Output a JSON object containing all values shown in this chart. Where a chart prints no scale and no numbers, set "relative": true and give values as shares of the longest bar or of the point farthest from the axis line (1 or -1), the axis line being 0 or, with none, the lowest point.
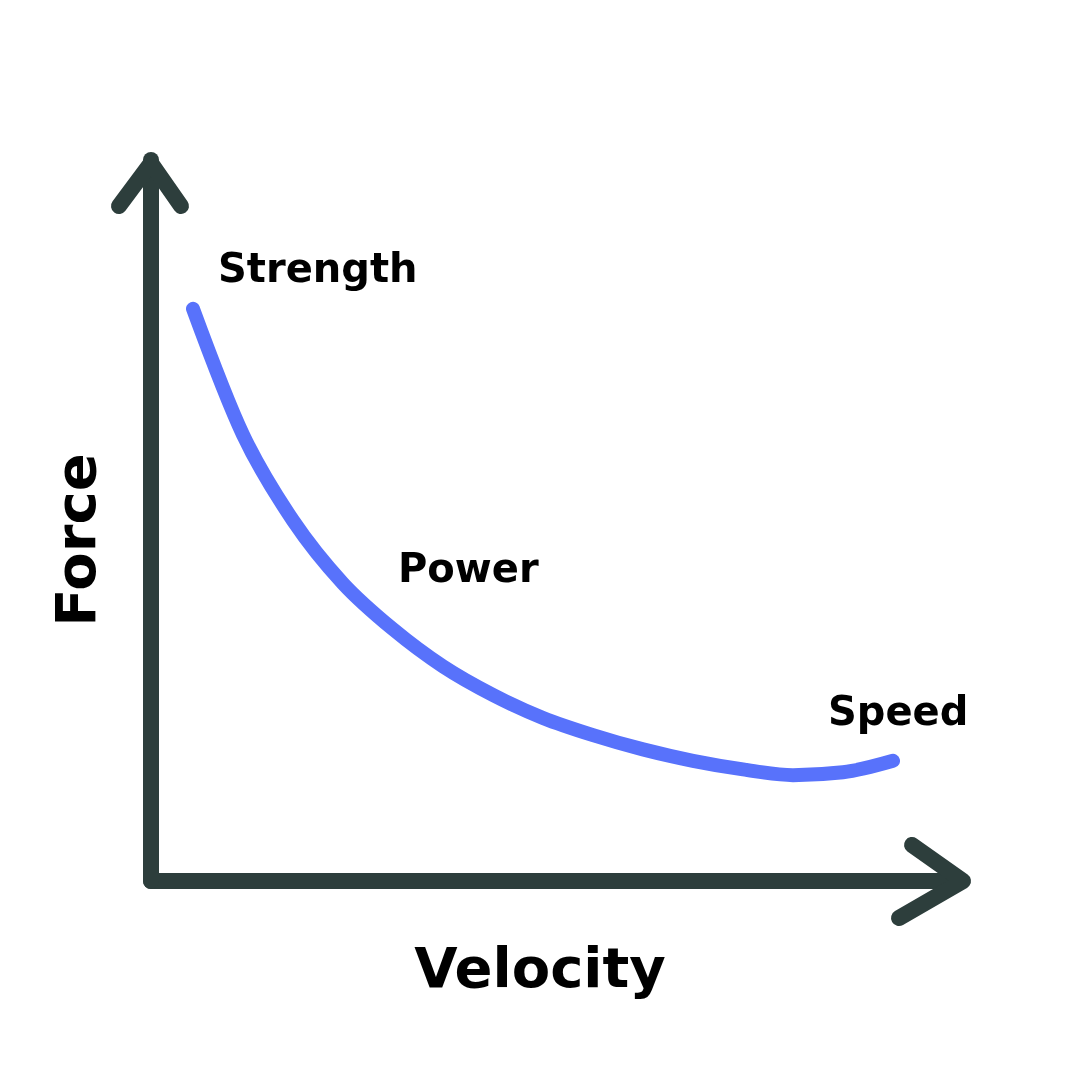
{
  "chart_data": {
    "type": "line",
    "relative": true,
    "xlabel": "Velocity",
    "ylabel": "Force",
    "annotations": [
      "Strength",
      "Power",
      "Speed"
    ],
    "categories": [
      null,
      null,
      null,
      null,
      null,
      null,
      null,
      null,
      null,
      null,
      null,
      null,
      null,
      null,
      null
    ],
    "series": [
      {
        "color": "#5872fb",
        "values": [
          1,
          0.78,
          0.63,
          0.52,
          0.44,
          0.375,
          0.325,
          0.285,
          0.255,
          0.23,
          0.21,
          0.195,
          0.185,
          0.19,
          0.21
        ]
      }
    ]
  }
}
